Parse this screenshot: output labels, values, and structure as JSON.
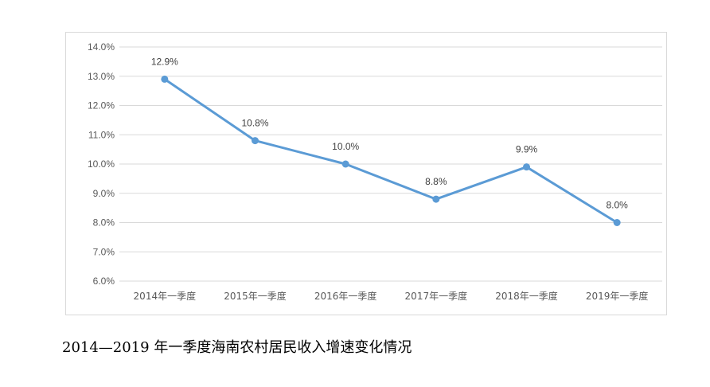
{
  "chart_data": {
    "type": "line",
    "categories": [
      "2014年一季度",
      "2015年一季度",
      "2016年一季度",
      "2017年一季度",
      "2018年一季度",
      "2019年一季度"
    ],
    "values": [
      12.9,
      10.8,
      10.0,
      8.8,
      9.9,
      8.0
    ],
    "data_labels": [
      "12.9%",
      "10.8%",
      "10.0%",
      "8.8%",
      "9.9%",
      "8.0%"
    ],
    "y_ticks": [
      "6.0%",
      "7.0%",
      "8.0%",
      "9.0%",
      "10.0%",
      "11.0%",
      "12.0%",
      "13.0%",
      "14.0%"
    ],
    "ylim": [
      6,
      14
    ],
    "grid": true,
    "legend": "none",
    "line_color": "#5b9bd5",
    "grid_color": "#d9d9d9"
  },
  "caption": "2014—2019 年一季度海南农村居民收入增速变化情况"
}
